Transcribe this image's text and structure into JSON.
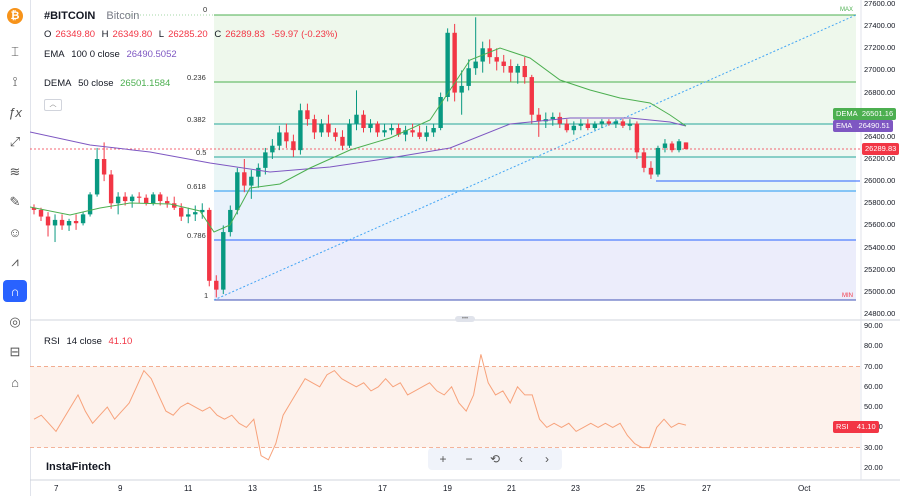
{
  "toolbar": {
    "items": [
      "bitcoin-logo",
      "crosshair",
      "cursor",
      "indicators",
      "trend-line",
      "fib",
      "brush",
      "emoji",
      "measure",
      "magnet",
      "eye-off",
      "lock",
      "screenshot"
    ]
  },
  "symbol": {
    "name": "#BITCOIN",
    "description": "Bitcoin",
    "o_label": "O",
    "o_value": "26349.80",
    "h_label": "H",
    "h_value": "26349.80",
    "l_label": "L",
    "l_value": "26285.20",
    "c_label": "C",
    "c_value": "26289.83",
    "change": "-59.97 (-0.23%)"
  },
  "ema": {
    "label": "EMA",
    "params": "100 0 close",
    "value": "26490.5052"
  },
  "dema": {
    "label": "DEMA",
    "params": "50 close",
    "value": "26501.1584"
  },
  "rsi": {
    "label": "RSI",
    "params": "14 close",
    "value": "41.10"
  },
  "price_axis": [
    "27600.00",
    "27400.00",
    "27200.00",
    "27000.00",
    "26800.00",
    "26600.00",
    "26400.00",
    "26200.00",
    "26000.00",
    "25800.00",
    "25600.00",
    "25400.00",
    "25200.00",
    "25000.00",
    "24800.00"
  ],
  "rsi_axis": [
    "90.00",
    "80.00",
    "70.00",
    "60.00",
    "50.00",
    "40.00",
    "30.00",
    "20.00"
  ],
  "tags": {
    "dema_label": "DEMA",
    "dema_value": "26501.16",
    "ema_label": "EMA",
    "ema_value": "26490.51",
    "price_value": "26289.83",
    "rsi_label": "RSI",
    "rsi_value": "41.10"
  },
  "fib": {
    "levels": [
      "0",
      "0.236",
      "0.382",
      "0.5",
      "0.618",
      "0.786",
      "1"
    ],
    "max_label": "MAX",
    "min_label": "MIN"
  },
  "time_axis": [
    "7",
    "9",
    "11",
    "13",
    "15",
    "17",
    "19",
    "21",
    "23",
    "25",
    "27",
    "Oct"
  ],
  "brand": "InstaFintech",
  "nav": {
    "zoom_in": "+",
    "zoom_out": "−",
    "reset": "⟲",
    "back": "‹",
    "forward": "›"
  },
  "colors": {
    "up": "#089981",
    "down": "#f23645",
    "ema": "#7e57c2",
    "dema": "#4caf50",
    "rsi": "#f7a27b",
    "fib_line": "#4caf50",
    "price_tag": "#f23645"
  },
  "chart_data": {
    "type": "candlestick",
    "ylim": [
      24800,
      27600
    ],
    "candles": [
      [
        25760,
        25790,
        25700,
        25740
      ],
      [
        25740,
        25760,
        25640,
        25680
      ],
      [
        25680,
        25720,
        25500,
        25600
      ],
      [
        25600,
        25700,
        25450,
        25650
      ],
      [
        25650,
        25700,
        25560,
        25600
      ],
      [
        25600,
        25660,
        25550,
        25640
      ],
      [
        25640,
        25700,
        25560,
        25620
      ],
      [
        25620,
        25720,
        25600,
        25700
      ],
      [
        25700,
        25900,
        25680,
        25880
      ],
      [
        25880,
        26300,
        25860,
        26200
      ],
      [
        26200,
        26350,
        26000,
        26060
      ],
      [
        26060,
        26100,
        25750,
        25800
      ],
      [
        25800,
        25900,
        25700,
        25860
      ],
      [
        25860,
        25900,
        25780,
        25820
      ],
      [
        25820,
        25880,
        25760,
        25860
      ],
      [
        25860,
        25900,
        25800,
        25850
      ],
      [
        25850,
        25880,
        25780,
        25800
      ],
      [
        25800,
        25900,
        25780,
        25880
      ],
      [
        25880,
        25900,
        25780,
        25820
      ],
      [
        25820,
        25860,
        25760,
        25800
      ],
      [
        25800,
        25860,
        25740,
        25760
      ],
      [
        25760,
        25800,
        25640,
        25680
      ],
      [
        25680,
        25760,
        25620,
        25700
      ],
      [
        25700,
        25780,
        25640,
        25720
      ],
      [
        25720,
        25800,
        25660,
        25740
      ],
      [
        25740,
        25760,
        25050,
        25100
      ],
      [
        25100,
        25150,
        24950,
        25020
      ],
      [
        25020,
        25600,
        24980,
        25540
      ],
      [
        25540,
        25780,
        25500,
        25740
      ],
      [
        25740,
        26120,
        25700,
        26080
      ],
      [
        26080,
        26200,
        25900,
        25960
      ],
      [
        25960,
        26100,
        25840,
        26040
      ],
      [
        26040,
        26160,
        25940,
        26120
      ],
      [
        26120,
        26300,
        26060,
        26260
      ],
      [
        26260,
        26380,
        26200,
        26320
      ],
      [
        26320,
        26500,
        26280,
        26440
      ],
      [
        26440,
        26520,
        26300,
        26360
      ],
      [
        26360,
        26420,
        26220,
        26280
      ],
      [
        26280,
        26700,
        26240,
        26640
      ],
      [
        26640,
        26700,
        26500,
        26560
      ],
      [
        26560,
        26600,
        26380,
        26440
      ],
      [
        26440,
        26560,
        26400,
        26520
      ],
      [
        26520,
        26600,
        26400,
        26440
      ],
      [
        26440,
        26480,
        26360,
        26400
      ],
      [
        26400,
        26460,
        26280,
        26320
      ],
      [
        26320,
        26560,
        26300,
        26520
      ],
      [
        26520,
        26820,
        26460,
        26600
      ],
      [
        26600,
        26640,
        26440,
        26480
      ],
      [
        26480,
        26560,
        26440,
        26520
      ],
      [
        26520,
        26540,
        26400,
        26440
      ],
      [
        26440,
        26520,
        26400,
        26460
      ],
      [
        26460,
        26520,
        26420,
        26480
      ],
      [
        26480,
        26520,
        26400,
        26420
      ],
      [
        26420,
        26500,
        26360,
        26460
      ],
      [
        26460,
        26520,
        26400,
        26440
      ],
      [
        26440,
        26500,
        26380,
        26400
      ],
      [
        26400,
        26500,
        26360,
        26440
      ],
      [
        26440,
        26520,
        26400,
        26480
      ],
      [
        26480,
        26800,
        26460,
        26760
      ],
      [
        26760,
        27380,
        26720,
        27340
      ],
      [
        27340,
        27420,
        26720,
        26800
      ],
      [
        26800,
        27000,
        26600,
        26860
      ],
      [
        26860,
        27100,
        26820,
        27020
      ],
      [
        27020,
        27480,
        26960,
        27080
      ],
      [
        27080,
        27260,
        26980,
        27200
      ],
      [
        27200,
        27280,
        27060,
        27120
      ],
      [
        27120,
        27200,
        27000,
        27080
      ],
      [
        27080,
        27140,
        26980,
        27040
      ],
      [
        27040,
        27100,
        26900,
        26980
      ],
      [
        26980,
        27060,
        26880,
        27040
      ],
      [
        27040,
        27120,
        26880,
        26940
      ],
      [
        26940,
        26960,
        26520,
        26600
      ],
      [
        26600,
        26660,
        26400,
        26540
      ],
      [
        26540,
        26620,
        26480,
        26560
      ],
      [
        26560,
        26620,
        26500,
        26580
      ],
      [
        26580,
        26620,
        26480,
        26520
      ],
      [
        26520,
        26560,
        26440,
        26460
      ],
      [
        26460,
        26540,
        26420,
        26500
      ],
      [
        26500,
        26560,
        26460,
        26520
      ],
      [
        26520,
        26560,
        26460,
        26480
      ],
      [
        26480,
        26540,
        26460,
        26520
      ],
      [
        26520,
        26560,
        26480,
        26540
      ],
      [
        26540,
        26560,
        26500,
        26520
      ],
      [
        26520,
        26560,
        26480,
        26540
      ],
      [
        26540,
        26560,
        26480,
        26500
      ],
      [
        26500,
        26560,
        26460,
        26520
      ],
      [
        26520,
        26540,
        26200,
        26260
      ],
      [
        26260,
        26300,
        26080,
        26120
      ],
      [
        26120,
        26180,
        26020,
        26060
      ],
      [
        26060,
        26320,
        26040,
        26300
      ],
      [
        26300,
        26380,
        26260,
        26340
      ],
      [
        26340,
        26360,
        26260,
        26280
      ],
      [
        26280,
        26380,
        26260,
        26360
      ],
      [
        26349.8,
        26349.8,
        26285.2,
        26289.83
      ]
    ],
    "ema_values": [
      26780,
      26600,
      26480
    ],
    "dema_values": [
      25700,
      27100,
      26501
    ],
    "rsi_values": [
      44,
      46,
      42,
      38,
      44,
      50,
      56,
      48,
      42,
      46,
      50,
      44,
      48,
      52,
      60,
      68,
      64,
      56,
      48,
      46,
      50,
      52,
      50,
      48,
      50,
      46,
      44,
      46,
      42,
      40,
      44,
      26,
      24,
      32,
      46,
      52,
      58,
      64,
      62,
      60,
      66,
      68,
      64,
      62,
      60,
      62,
      58,
      60,
      64,
      60,
      62,
      56,
      58,
      60,
      62,
      58,
      56,
      60,
      52,
      48,
      56,
      76,
      62,
      56,
      58,
      52,
      60,
      56,
      56,
      44,
      40,
      42,
      40,
      42,
      38,
      40,
      42,
      40,
      42,
      40,
      42,
      36,
      32,
      30,
      30,
      40,
      44,
      40,
      42,
      41.1
    ]
  }
}
